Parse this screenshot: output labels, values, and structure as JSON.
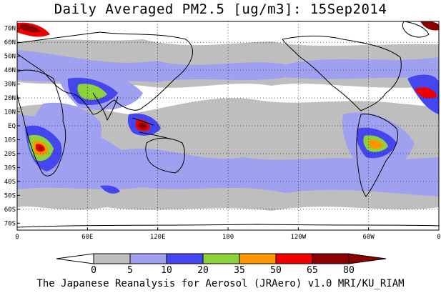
{
  "title": "Daily Averaged PM2.5 [ug/m3]: 15Sep2014",
  "footer": "The Japanese Reanalysis for Aerosol (JRAero) v1.0 MRI/KU_RIAM",
  "map": {
    "projection": "cylindrical equidistant",
    "lon_range": [
      0,
      360
    ],
    "lat_range": [
      -75,
      75
    ],
    "lat_labels": [
      "70N",
      "60N",
      "50N",
      "40N",
      "30N",
      "20N",
      "10N",
      "EQ",
      "10S",
      "20S",
      "30S",
      "40S",
      "50S",
      "60S",
      "70S"
    ],
    "lon_labels": [
      "0",
      "60E",
      "120E",
      "180",
      "120W",
      "60W",
      "0"
    ]
  },
  "colorbar": {
    "ticks": [
      "0",
      "5",
      "10",
      "20",
      "35",
      "50",
      "65",
      "80"
    ],
    "colors": [
      "#ffffff",
      "#bebebe",
      "#a0a0f0",
      "#4646f0",
      "#8cd23c",
      "#ff9600",
      "#f00000",
      "#8c0000"
    ]
  }
}
